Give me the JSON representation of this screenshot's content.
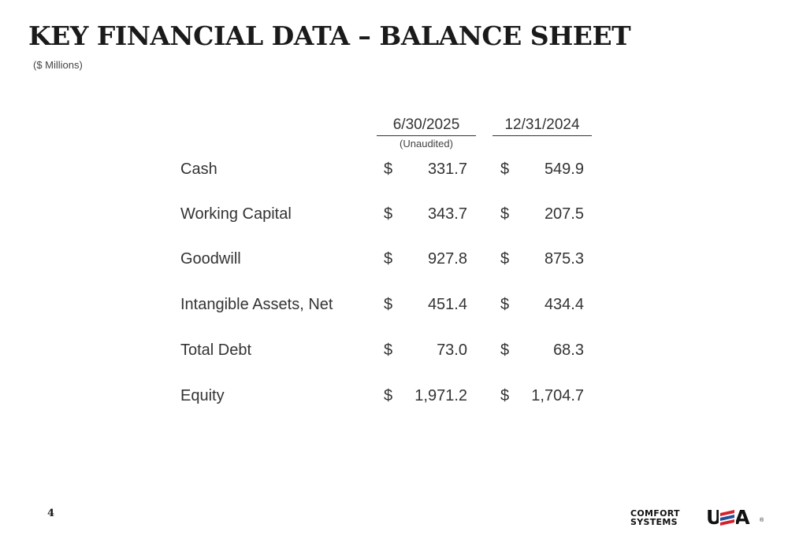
{
  "header": {
    "title": "KEY FINANCIAL DATA – BALANCE SHEET",
    "subtitle": "($ Millions)"
  },
  "columns": [
    {
      "label": "6/30/2025",
      "note": "(Unaudited)"
    },
    {
      "label": "12/31/2024"
    }
  ],
  "rows": [
    {
      "label": "Cash",
      "cur1": "$",
      "val1": "331.7",
      "cur2": "$",
      "val2": "549.9"
    },
    {
      "label": "Working Capital",
      "cur1": "$",
      "val1": "343.7",
      "cur2": "$",
      "val2": "207.5"
    },
    {
      "label": "Goodwill",
      "cur1": "$",
      "val1": "927.8",
      "cur2": "$",
      "val2": "875.3"
    },
    {
      "label": "Intangible Assets, Net",
      "cur1": "$",
      "val1": "451.4",
      "cur2": "$",
      "val2": "434.4"
    },
    {
      "label": "Total Debt",
      "cur1": "$",
      "val1": "73.0",
      "cur2": "$",
      "val2": "68.3"
    },
    {
      "label": "Equity",
      "cur1": "$",
      "val1": "1,971.2",
      "cur2": "$",
      "val2": "1,704.7"
    }
  ],
  "footer": {
    "page_number": "4",
    "logo": {
      "line1": "COMFORT",
      "line2": "SYSTEMS",
      "mark": "USA",
      "registered": "®",
      "icon": "comfort-systems-usa-logo",
      "colors": {
        "red": "#d2232a",
        "blue": "#1f4e9c",
        "dark": "#111111"
      }
    }
  }
}
